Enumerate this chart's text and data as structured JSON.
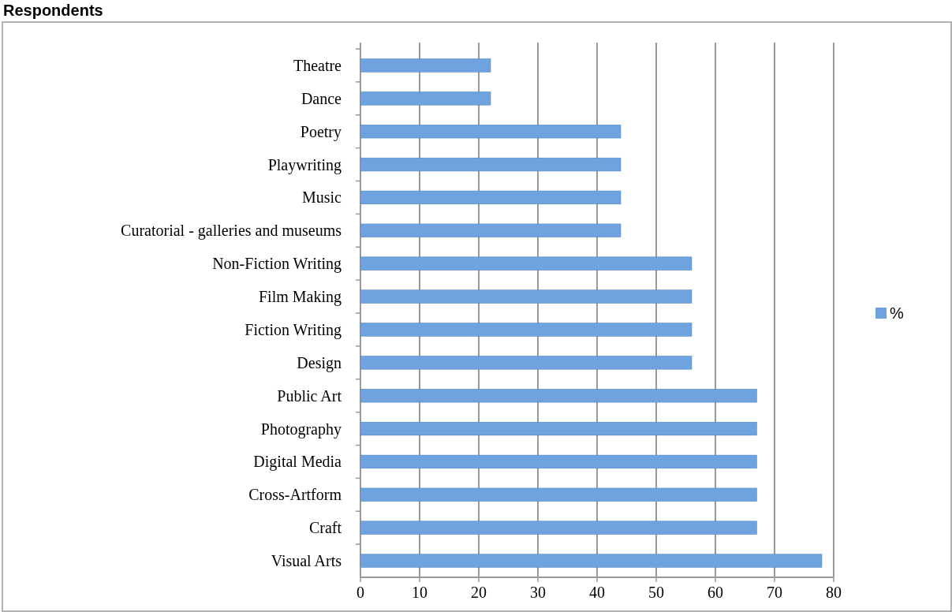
{
  "chart_data": {
    "type": "bar",
    "orientation": "horizontal",
    "title": "Respondents",
    "categories": [
      "Theatre",
      "Dance",
      "Poetry",
      "Playwriting",
      "Music",
      "Curatorial - galleries and museums",
      "Non-Fiction Writing",
      "Film Making",
      "Fiction Writing",
      "Design",
      "Public Art",
      "Photography",
      "Digital Media",
      "Cross-Artform",
      "Craft",
      "Visual Arts"
    ],
    "series": [
      {
        "name": "%",
        "color": "#6fa3e0",
        "values": [
          22,
          22,
          44,
          44,
          44,
          44,
          56,
          56,
          56,
          56,
          67,
          67,
          67,
          67,
          67,
          78
        ]
      }
    ],
    "xlim": [
      0,
      80
    ],
    "xticks": [
      0,
      10,
      20,
      30,
      40,
      50,
      60,
      70,
      80
    ],
    "grid": "x",
    "legend": "right"
  }
}
